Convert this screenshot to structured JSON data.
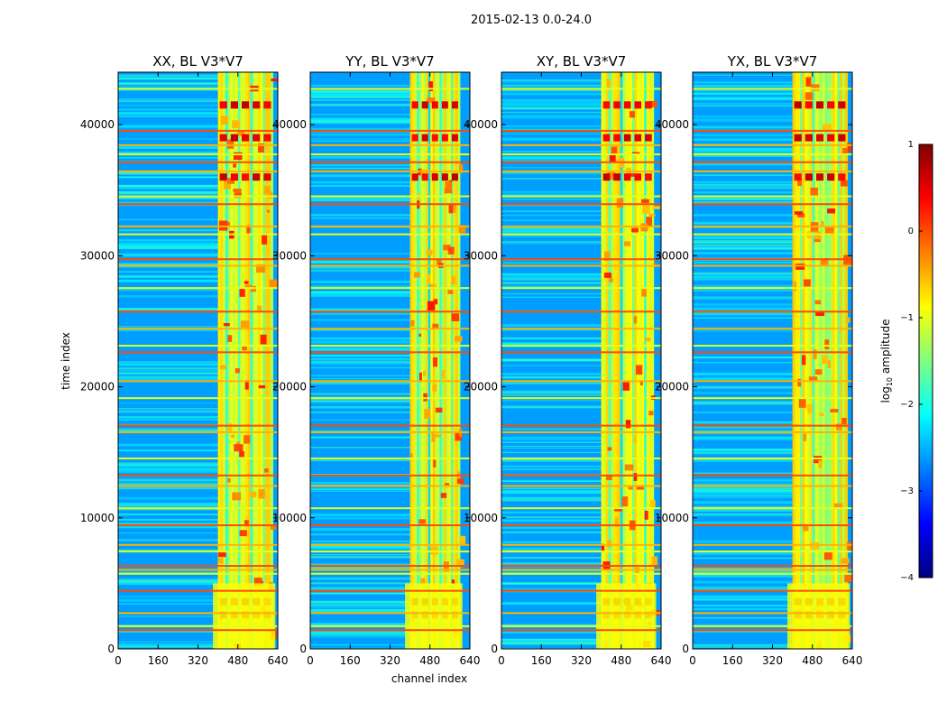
{
  "chart_data": {
    "type": "heatmap",
    "suptitle": "2015-02-13 0.0-24.0",
    "xlabel": "channel index",
    "ylabel": "time index",
    "xlim": [
      0,
      640
    ],
    "ylim": [
      0,
      44000
    ],
    "xticks": [
      "0",
      "160",
      "320",
      "480",
      "640"
    ],
    "yticks": [
      "0",
      "10000",
      "20000",
      "30000",
      "40000"
    ],
    "panels": [
      {
        "title": "XX, BL V3*V7",
        "signal_band": [
          400,
          620
        ]
      },
      {
        "title": "YY, BL V3*V7",
        "signal_band": [
          400,
          600
        ]
      },
      {
        "title": "XY, BL V3*V7",
        "signal_band": [
          400,
          610
        ]
      },
      {
        "title": "YX, BL V3*V7",
        "signal_band": [
          400,
          620
        ]
      }
    ],
    "background_level": -2.6,
    "band_level": -1.0,
    "bright_level": 0.7,
    "colorbar": {
      "label": "log10 amplitude",
      "label_main": "log",
      "label_sub": "10",
      "label_rest": " amplitude",
      "vmin": -4,
      "vmax": 1,
      "ticks": [
        "1",
        "0",
        "−1",
        "−2",
        "−3",
        "−4"
      ],
      "colors": [
        "#00007f",
        "#0000ff",
        "#007fff",
        "#00ffff",
        "#7fff7f",
        "#ffff00",
        "#ff7f00",
        "#ff0000",
        "#7f0000"
      ]
    },
    "rfi_rows": [
      1500,
      1800,
      2800,
      4500,
      5800,
      6100,
      6400,
      7500,
      8000,
      9500,
      10800,
      12500,
      13300,
      14600,
      16600,
      17100,
      19200,
      20500,
      22700,
      23200,
      24500,
      25800,
      27600,
      29300,
      29800,
      31700,
      32300,
      34000,
      34600,
      36500,
      37200,
      37800,
      38500,
      39600,
      42800
    ],
    "hot_rows": [
      2600,
      3600,
      36000,
      39000,
      41500
    ]
  }
}
